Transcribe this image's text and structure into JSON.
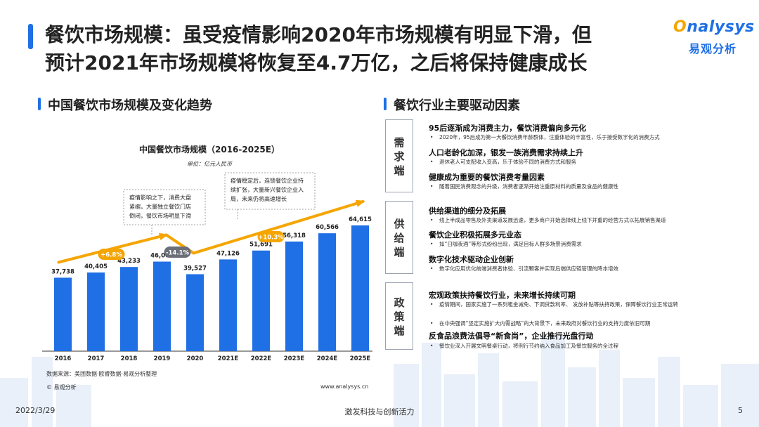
{
  "header": {
    "title_line1": "餐饮市场规模：虽受疫情影响2020年市场规模有明显下滑，但",
    "title_line2": "预计2021年市场规模将恢复至4.7万亿，之后将保持健康成长",
    "logo_en_o": "O",
    "logo_en_rest": "nalysys",
    "logo_cn": "易观分析"
  },
  "left": {
    "section_title": "中国餐饮市场规模及变化趋势"
  },
  "right": {
    "section_title": "餐饮行业主要驱动因素",
    "groups": [
      {
        "label": [
          "需",
          "求",
          "端"
        ],
        "items": [
          {
            "heading": "95后逐渐成为消费主力，餐饮消费偏向多元化",
            "detail": "2020年，95后成为第一大餐饮消费年龄群体，注重体验的丰富性，乐于接受数字化的消费方式"
          },
          {
            "heading": "人口老龄化加深，银发一族消费需求持续上升",
            "detail": "退休老人可支配收入变高，乐于体验不同的消费方式和服务"
          },
          {
            "heading": "健康成为重要的餐饮消费考量因素",
            "detail": "随着国民消费观念的升级，消费者逐渐开始注重原材料的质量及食品的健康性"
          }
        ]
      },
      {
        "label": [
          "供",
          "给",
          "端"
        ],
        "items": [
          {
            "heading": "供给渠道的细分及拓展",
            "detail": "线上半成品零售及外卖渠道发展迅速，更多商户开始选择线上线下并重的经营方式以拓展销售渠道"
          },
          {
            "heading": "餐饮企业积极拓展多元业态",
            "detail": "如“日咖夜酒”等形式纷纷出现，满足目标人群多场景消费需求"
          },
          {
            "heading": "数字化技术驱动企业创新",
            "detail": "数字化应用优化前端消费者体验、引流颗客并实现后端供应链管理的降本增效"
          }
        ]
      },
      {
        "label": [
          "政",
          "策",
          "端"
        ],
        "items": [
          {
            "heading": "宏观政策扶持餐饮行业，未来增长持续可期",
            "detail": "疫情期间，国家实施了一系列租金减免、下调贷款利率、 发放补贴等扶持政策，保障餐饮行业正常运转"
          },
          {
            "heading": "",
            "detail": "在中央强调“坚定实施扩大内需战略”的大背景下，未来政府对餐饮行业的支持力度依旧可期"
          },
          {
            "heading": "反食品浪费法倡导“新食尚”，企业推行光盘行动",
            "detail": "餐饮业深入开展文明餐桌行动，将例行节约纳入食品加工及餐饮服务的全过程"
          }
        ]
      }
    ]
  },
  "chart_data": {
    "type": "bar",
    "title": "中国餐饮市场规模（2016-2025E）",
    "unit": "单位：亿元人民币",
    "categories": [
      "2016",
      "2017",
      "2018",
      "2019",
      "2020",
      "2021E",
      "2022E",
      "2023E",
      "2024E",
      "2025E"
    ],
    "values": [
      37738,
      40405,
      43233,
      46000,
      39527,
      47126,
      51691,
      56318,
      60566,
      64615
    ],
    "value_labels": [
      "37,738",
      "40,405",
      "43,233",
      "46,000",
      "39,527",
      "47,126",
      "51,691",
      "56,318",
      "60,566",
      "64,615"
    ],
    "ylim": [
      0,
      70000
    ],
    "bar_color": "#1f6fe5",
    "trend_color": "#f5a500",
    "annotations": [
      {
        "text": "+6.8%",
        "color": "#f5a500"
      },
      {
        "text": "-14.1%",
        "color": "#6b6f78"
      },
      {
        "text": "+10.3%",
        "color": "#f5a500"
      }
    ],
    "callouts": [
      {
        "lines": [
          "疫情影响之下，消费大盘",
          "紧缩，大量独立餐饮门店",
          "倒闭，餐饮市场明显下滑"
        ]
      },
      {
        "lines": [
          "疫情稳定后，连锁餐饮企业持",
          "续扩张，大量新兴餐饮企业入",
          "局，未来仍将高速增长"
        ]
      }
    ]
  },
  "footer": {
    "source": "数据来源：美团数据·欧睿数据·易观分析整理",
    "copyright": "© 易观分析",
    "url": "www.analysys.cn",
    "date": "2022/3/29",
    "slogan": "激发科技与创新活力",
    "page": "5"
  }
}
